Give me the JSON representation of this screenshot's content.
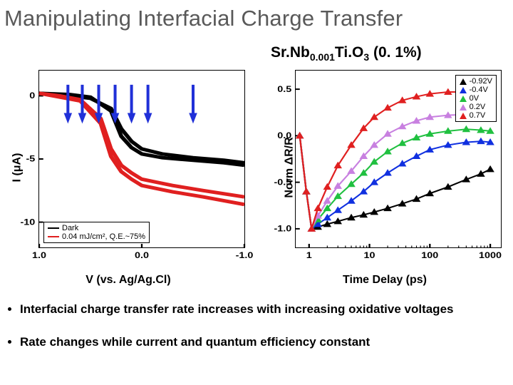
{
  "title": "Manipulating Interfacial Charge Transfer",
  "subtitle_formula": "Sr.Nb",
  "subtitle_sub1": "0.001",
  "subtitle_mid": "Ti.O",
  "subtitle_sub2": "3",
  "subtitle_tail": " (0. 1%)",
  "left_chart": {
    "type": "line",
    "ylabel": "I (μA)",
    "xlabel": "V (vs. Ag/Ag.Cl)",
    "xlim": [
      1.0,
      -1.0
    ],
    "ylim": [
      2,
      -12
    ],
    "xticks": [
      1.0,
      0.0,
      -1.0
    ],
    "yticks": [
      -10,
      -5,
      0
    ],
    "legend": [
      {
        "label": "Dark",
        "color": "#000000"
      },
      {
        "label": "0.04 mJ/cm², Q.E.~75%",
        "color": "#e02020"
      }
    ],
    "arrows": {
      "color": "#2030d8",
      "positions_v": [
        0.72,
        0.58,
        0.42,
        0.26,
        0.1,
        -0.06,
        -0.5
      ]
    },
    "curves": {
      "dark": {
        "color": "#000000",
        "width": 2.0,
        "series": [
          [
            [
              1.0,
              0.2
            ],
            [
              0.7,
              0.1
            ],
            [
              0.5,
              -0.1
            ],
            [
              0.3,
              -1.2
            ],
            [
              0.2,
              -3.2
            ],
            [
              0.1,
              -4.1
            ],
            [
              0.0,
              -4.6
            ],
            [
              -0.2,
              -4.9
            ],
            [
              -0.5,
              -5.1
            ],
            [
              -0.8,
              -5.3
            ],
            [
              -1.0,
              -5.5
            ]
          ],
          [
            [
              1.0,
              0.2
            ],
            [
              0.7,
              0.0
            ],
            [
              0.5,
              -0.2
            ],
            [
              0.3,
              -1.0
            ],
            [
              0.2,
              -2.6
            ],
            [
              0.1,
              -3.6
            ],
            [
              0.0,
              -4.2
            ],
            [
              -0.2,
              -4.6
            ],
            [
              -0.5,
              -4.9
            ],
            [
              -0.8,
              -5.1
            ],
            [
              -1.0,
              -5.3
            ]
          ]
        ]
      },
      "light": {
        "color": "#e02020",
        "width": 2.0,
        "series": [
          [
            [
              1.0,
              0.2
            ],
            [
              0.8,
              0.0
            ],
            [
              0.6,
              -0.3
            ],
            [
              0.4,
              -1.8
            ],
            [
              0.3,
              -4.2
            ],
            [
              0.2,
              -5.5
            ],
            [
              0.1,
              -6.1
            ],
            [
              0.0,
              -6.6
            ],
            [
              -0.3,
              -7.1
            ],
            [
              -0.6,
              -7.5
            ],
            [
              -1.0,
              -8.0
            ]
          ],
          [
            [
              1.0,
              0.2
            ],
            [
              0.8,
              -0.1
            ],
            [
              0.6,
              -0.4
            ],
            [
              0.4,
              -2.2
            ],
            [
              0.3,
              -4.8
            ],
            [
              0.2,
              -6.0
            ],
            [
              0.1,
              -6.6
            ],
            [
              0.0,
              -7.1
            ],
            [
              -0.3,
              -7.6
            ],
            [
              -0.6,
              -8.0
            ],
            [
              -1.0,
              -8.6
            ]
          ]
        ]
      }
    }
  },
  "right_chart": {
    "type": "scatter-line",
    "ylabel": "Norm ΔR/R",
    "xlabel": "Time Delay (ps)",
    "xlim_log": [
      0.6,
      1500
    ],
    "ylim": [
      -1.2,
      0.7
    ],
    "xticks": [
      1,
      10,
      100,
      1000
    ],
    "yticks": [
      -1.0,
      -0.5,
      0.0,
      0.5
    ],
    "legend": [
      {
        "label": "-0.92V",
        "color": "#000000",
        "marker": "tri-up"
      },
      {
        "label": "-0.4V",
        "color": "#1030e0",
        "marker": "tri-up"
      },
      {
        "label": "0V",
        "color": "#20c040",
        "marker": "tri-up"
      },
      {
        "label": "0.2V",
        "color": "#c880e0",
        "marker": "tri-up"
      },
      {
        "label": "0.7V",
        "color": "#e02020",
        "marker": "tri-up"
      }
    ],
    "series": {
      "m092": {
        "color": "#000000",
        "points": [
          [
            0.7,
            0.0
          ],
          [
            0.9,
            -0.6
          ],
          [
            1.1,
            -1.0
          ],
          [
            1.4,
            -0.98
          ],
          [
            2,
            -0.95
          ],
          [
            3,
            -0.92
          ],
          [
            5,
            -0.88
          ],
          [
            8,
            -0.85
          ],
          [
            12,
            -0.82
          ],
          [
            20,
            -0.78
          ],
          [
            35,
            -0.73
          ],
          [
            60,
            -0.68
          ],
          [
            100,
            -0.62
          ],
          [
            200,
            -0.55
          ],
          [
            400,
            -0.47
          ],
          [
            700,
            -0.41
          ],
          [
            1000,
            -0.36
          ]
        ]
      },
      "m04": {
        "color": "#1030e0",
        "points": [
          [
            0.7,
            0.0
          ],
          [
            0.9,
            -0.6
          ],
          [
            1.1,
            -1.0
          ],
          [
            1.4,
            -0.95
          ],
          [
            2,
            -0.88
          ],
          [
            3,
            -0.8
          ],
          [
            5,
            -0.7
          ],
          [
            8,
            -0.6
          ],
          [
            12,
            -0.5
          ],
          [
            20,
            -0.4
          ],
          [
            35,
            -0.3
          ],
          [
            60,
            -0.22
          ],
          [
            100,
            -0.15
          ],
          [
            200,
            -0.1
          ],
          [
            400,
            -0.07
          ],
          [
            700,
            -0.06
          ],
          [
            1000,
            -0.07
          ]
        ]
      },
      "v0": {
        "color": "#20c040",
        "points": [
          [
            0.7,
            0.0
          ],
          [
            0.9,
            -0.6
          ],
          [
            1.1,
            -1.0
          ],
          [
            1.4,
            -0.9
          ],
          [
            2,
            -0.78
          ],
          [
            3,
            -0.65
          ],
          [
            5,
            -0.52
          ],
          [
            8,
            -0.4
          ],
          [
            12,
            -0.28
          ],
          [
            20,
            -0.17
          ],
          [
            35,
            -0.08
          ],
          [
            60,
            -0.02
          ],
          [
            100,
            0.02
          ],
          [
            200,
            0.05
          ],
          [
            400,
            0.07
          ],
          [
            700,
            0.06
          ],
          [
            1000,
            0.05
          ]
        ]
      },
      "v02": {
        "color": "#c880e0",
        "points": [
          [
            0.7,
            0.0
          ],
          [
            0.9,
            -0.6
          ],
          [
            1.1,
            -1.0
          ],
          [
            1.4,
            -0.86
          ],
          [
            2,
            -0.7
          ],
          [
            3,
            -0.54
          ],
          [
            5,
            -0.38
          ],
          [
            8,
            -0.22
          ],
          [
            12,
            -0.1
          ],
          [
            20,
            0.02
          ],
          [
            35,
            0.1
          ],
          [
            60,
            0.16
          ],
          [
            100,
            0.2
          ],
          [
            200,
            0.22
          ],
          [
            400,
            0.23
          ],
          [
            700,
            0.22
          ],
          [
            1000,
            0.2
          ]
        ]
      },
      "v07": {
        "color": "#e02020",
        "points": [
          [
            0.7,
            0.0
          ],
          [
            0.9,
            -0.6
          ],
          [
            1.1,
            -1.0
          ],
          [
            1.4,
            -0.78
          ],
          [
            2,
            -0.55
          ],
          [
            3,
            -0.32
          ],
          [
            5,
            -0.1
          ],
          [
            8,
            0.08
          ],
          [
            12,
            0.2
          ],
          [
            20,
            0.3
          ],
          [
            35,
            0.38
          ],
          [
            60,
            0.42
          ],
          [
            100,
            0.45
          ],
          [
            200,
            0.47
          ],
          [
            400,
            0.47
          ],
          [
            700,
            0.45
          ],
          [
            1000,
            0.43
          ]
        ]
      }
    }
  },
  "bullets": [
    "Interfacial charge transfer rate increases with increasing oxidative voltages",
    "Rate changes while current and quantum efficiency constant"
  ]
}
